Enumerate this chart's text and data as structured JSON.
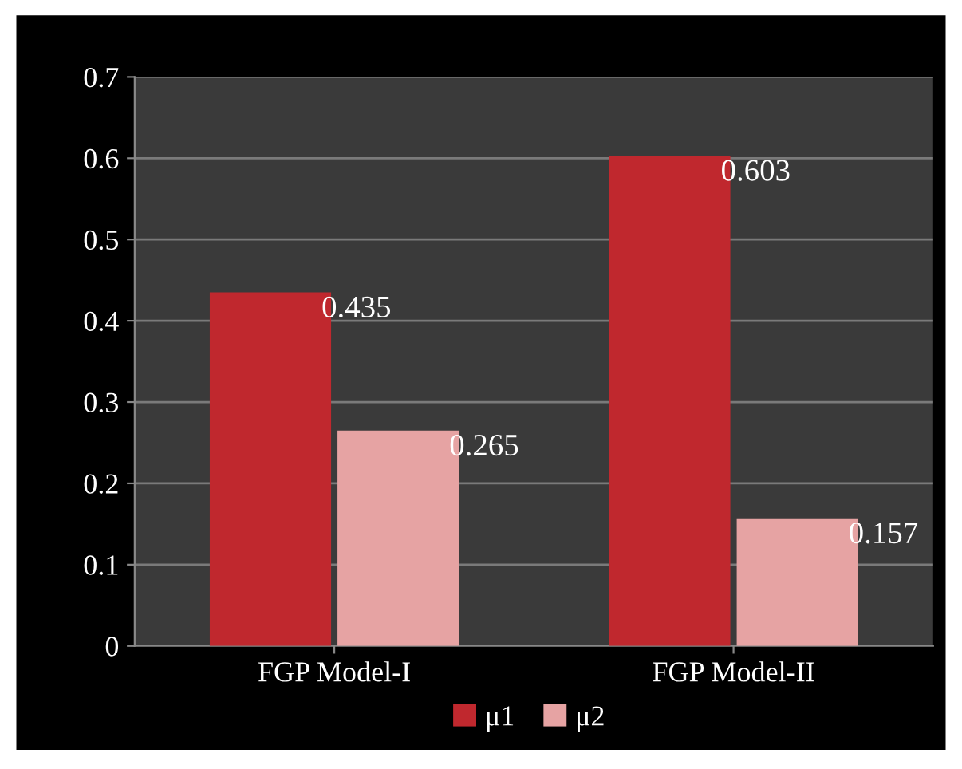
{
  "chart_data": {
    "type": "bar",
    "categories": [
      "FGP Model-I",
      "FGP Model-II"
    ],
    "series": [
      {
        "name": "μ1",
        "color": "#c0282e",
        "values": [
          0.435,
          0.603
        ]
      },
      {
        "name": "μ2",
        "color": "#e6a3a3",
        "values": [
          0.265,
          0.157
        ]
      }
    ],
    "ylim": [
      0,
      0.7
    ],
    "yticks": [
      0,
      0.1,
      0.2,
      0.3,
      0.4,
      0.5,
      0.6,
      0.7
    ],
    "grid": "y",
    "legend": "bottom",
    "data_labels": true
  }
}
